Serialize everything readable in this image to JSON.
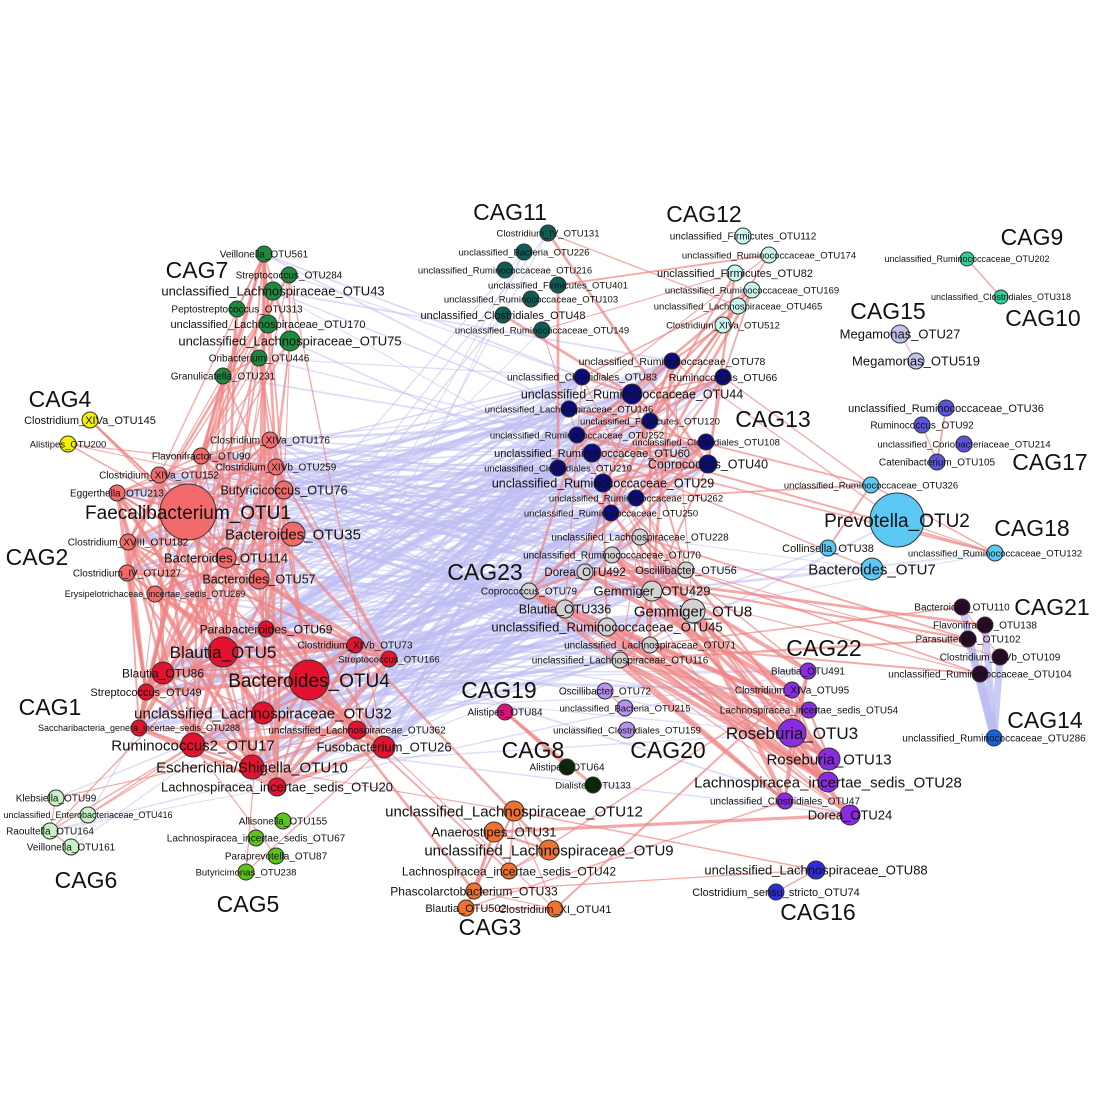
{
  "edge_colors": {
    "positive": "#f08585",
    "negative": "#bdbdf2"
  },
  "node_stroke": "#333333",
  "cags": [
    {
      "id": "CAG7",
      "color": "#1b8a3c",
      "nodes": [
        "Veillonella_OTU561",
        "Streptococcus_OTU284",
        "unclassified_Lachnospiraceae_OTU43",
        "Peptostreptococcus_OTU313",
        "unclassified_Lachnospiraceae_OTU170",
        "unclassified_Lachnospiraceae_OTU75",
        "Oribacterium_OTU446",
        "Granulicatella_OTU231"
      ]
    },
    {
      "id": "CAG4",
      "color": "#f5f000",
      "nodes": [
        "Clostridium_XIVa_OTU145",
        "Alistipes_OTU200"
      ]
    },
    {
      "id": "CAG2",
      "color": "#f26a6a",
      "nodes": [
        "Clostridium_XIVa_OTU176",
        "Flavonifractor_OTU90",
        "Clostridium_XIVb_OTU259",
        "Clostridium_XIVa_OTU152",
        "Butyricicoccus_OTU76",
        "Eggerthella_OTU213",
        "Faecalibacterium_OTU1",
        "Bacteroides_OTU35",
        "Clostridium_XVIII_OTU182",
        "Bacteroides_OTU114",
        "Clostridium_IV_OTU127",
        "Bacteroides_OTU57",
        "Erysipelotrichaceae_incertae_sedis_OTU269"
      ]
    },
    {
      "id": "CAG1",
      "color": "#e3122f",
      "nodes": [
        "Parabacteroides_OTU69",
        "Blautia_OTU5",
        "Clostridium_XIVb_OTU73",
        "Streptococcus_OTU166",
        "Blautia_OTU86",
        "Bacteroides_OTU4",
        "Streptococcus_OTU49",
        "unclassified_Lachnospiraceae_OTU32",
        "Saccharibacteria_genera_incertae_sedis_OTU288",
        "unclassified_Lachnospiraceae_OTU362",
        "Ruminococcus2_OTU17",
        "Fusobacterium_OTU26",
        "Escherichia/Shigella_OTU10",
        "Lachnospiracea_incertae_sedis_OTU20"
      ]
    },
    {
      "id": "CAG6",
      "color": "#c8f2c4",
      "nodes": [
        "Klebsiella_OTU99",
        "unclassified_Enterobacteriaceae_OTU416",
        "Raoultella_OTU164",
        "Veillonella_OTU161"
      ]
    },
    {
      "id": "CAG5",
      "color": "#5cc51b",
      "nodes": [
        "Allisonella_OTU155",
        "Lachnospiracea_incertae_sedis_OTU67",
        "Paraprevotella_OTU87",
        "Butyricimonas_OTU238"
      ]
    },
    {
      "id": "CAG11",
      "color": "#0d5c57",
      "nodes": [
        "Clostridium_IV_OTU131",
        "unclassified_Bacteria_OTU226",
        "unclassified_Ruminococcaceae_OTU216",
        "unclassified_Firmicutes_OTU401",
        "unclassified_Ruminococcaceae_OTU103",
        "unclassified_Clostridiales_OTU48",
        "unclassified_Ruminococcaceae_OTU149"
      ]
    },
    {
      "id": "CAG12",
      "color": "#c9f6f0",
      "nodes": [
        "unclassified_Firmicutes_OTU112",
        "unclassified_Ruminococcaceae_OTU174",
        "unclassified_Firmicutes_OTU82",
        "unclassified_Ruminococcaceae_OTU169",
        "unclassified_Lachnospiraceae_OTU465",
        "Clostridium_XIVa_OTU512"
      ]
    },
    {
      "id": "CAG13",
      "color": "#0b0b7c",
      "nodes": [
        "unclassified_Ruminococcaceae_OTU78",
        "unclassified_Clostridiales_OTU83",
        "Ruminococcus_OTU66",
        "unclassified_Ruminococcaceae_OTU44",
        "unclassified_Lachnospiraceae_OTU146",
        "unclassified_Firmicutes_OTU120",
        "unclassified_Ruminococcaceae_OTU252",
        "unclassified_Clostridiales_OTU108",
        "unclassified_Ruminococcaceae_OTU60",
        "unclassified_Clostridiales_OTU210",
        "Coprococcus_OTU40",
        "unclassified_Ruminococcaceae_OTU29",
        "unclassified_Ruminococcaceae_OTU262",
        "unclassified_Ruminococcaceae_OTU250"
      ]
    },
    {
      "id": "CAG9",
      "color": "#2fcf9c",
      "nodes": [
        "unclassified_Ruminococcaceae_OTU202"
      ]
    },
    {
      "id": "CAG10",
      "color": "#2fcf9c",
      "nodes": [
        "unclassified_Clostridiales_OTU318"
      ]
    },
    {
      "id": "CAG15",
      "color": "#c3c2ea",
      "nodes": [
        "Megamonas_OTU27",
        "Megamonas_OTU519"
      ]
    },
    {
      "id": "CAG17",
      "color": "#5b53d9",
      "nodes": [
        "unclassified_Ruminococcaceae_OTU36",
        "Ruminococcus_OTU92",
        "unclassified_Coriobacteriaceae_OTU214",
        "Catenibacterium_OTU105"
      ]
    },
    {
      "id": "CAG18",
      "color": "#5cc9f5",
      "nodes": [
        "unclassified_Ruminococcaceae_OTU326",
        "Prevotella_OTU2",
        "Collinsella_OTU38",
        "unclassified_Ruminococcaceae_OTU132",
        "Bacteroides_OTU7"
      ]
    },
    {
      "id": "CAG21",
      "color": "#2b0a2b",
      "nodes": [
        "Bacteroides_OTU110",
        "Flavonifractor_OTU138",
        "Parasutterella_OTU102",
        "Clostridium_XIVb_OTU109",
        "unclassified_Ruminococcaceae_OTU104"
      ]
    },
    {
      "id": "CAG14",
      "color": "#1262e0",
      "nodes": [
        "unclassified_Ruminococcaceae_OTU286"
      ]
    },
    {
      "id": "CAG23",
      "color": "#d2d2d2",
      "nodes": [
        "unclassified_Lachnospiraceae_OTU228",
        "unclassified_Ruminococcaceae_OTU70",
        "Dorea_OTU492",
        "Oscillibacter_OTU56",
        "Coprococcus_OTU79",
        "Gemmiger_OTU429",
        "Blautia_OTU336",
        "Gemmiger_OTU8",
        "unclassified_Ruminococcaceae_OTU45",
        "unclassified_Lachnospiraceae_OTU71",
        "unclassified_Lachnospiraceae_OTU116"
      ]
    },
    {
      "id": "CAG19",
      "color": "#e0107a",
      "nodes": [
        "Alistipes_OTU84"
      ]
    },
    {
      "id": "CAG20",
      "color": "#b992f0",
      "nodes": [
        "Oscillibacter_OTU72",
        "unclassified_Bacteria_OTU215",
        "unclassified_Clostridiales_OTU159"
      ]
    },
    {
      "id": "CAG8",
      "color": "#0b2a0b",
      "nodes": [
        "Alistipes_OTU64",
        "Dialister_OTU133"
      ]
    },
    {
      "id": "CAG22",
      "color": "#8a2be2",
      "nodes": [
        "Blautia_OTU491",
        "Clostridium_XIVa_OTU95",
        "Lachnospiracea_incertae_sedis_OTU54",
        "Roseburia_OTU3",
        "Roseburia_OTU13",
        "Lachnospiracea_incertae_sedis_OTU28",
        "unclassified_Clostridiales_OTU47",
        "Dorea_OTU24"
      ]
    },
    {
      "id": "CAG3",
      "color": "#f07230",
      "nodes": [
        "unclassified_Lachnospiraceae_OTU12",
        "Anaerostipes_OTU31",
        "unclassified_Lachnospiraceae_OTU9",
        "Lachnospiracea_incertae_sedis_OTU42",
        "Phascolarctobacterium_OTU33",
        "Blautia_OTU502",
        "Clostridium_XI_OTU41"
      ]
    },
    {
      "id": "CAG16",
      "color": "#2b2be0",
      "nodes": [
        "unclassified_Lachnospiraceae_OTU88",
        "Clostridium_sensu_stricto_OTU74"
      ]
    }
  ]
}
